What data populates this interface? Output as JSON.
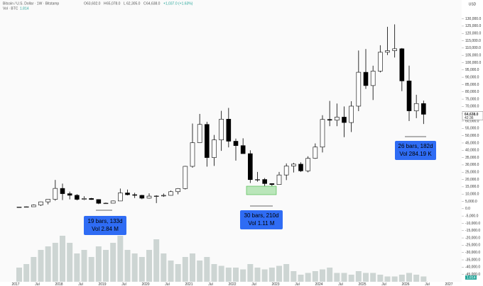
{
  "chart_data": {
    "type": "candlestick",
    "header": {
      "symbol": "Bitcoin / U.S. Dollar · 1W · Bitstamp",
      "stats": [
        {
          "key": "O",
          "value": "63,602.0"
        },
        {
          "key": "H",
          "value": "65,078.0"
        },
        {
          "key": "L",
          "value": "62,305.0"
        },
        {
          "key": "C",
          "value": "64,638.0"
        }
      ],
      "change": "+1,037.0 (+1.63%)",
      "volume_label": "Vol · BTC",
      "volume_last": "1.814"
    },
    "currency": "USD",
    "last_price_label": "64,638.0",
    "countdown": "42:36",
    "x": [
      "2017-01",
      "2017-03",
      "2017-05",
      "2017-07",
      "2017-09",
      "2017-11",
      "2018-01",
      "2018-03",
      "2018-05",
      "2018-07",
      "2018-09",
      "2018-11",
      "2019-01",
      "2019-03",
      "2019-05",
      "2019-07",
      "2019-09",
      "2019-11",
      "2020-01",
      "2020-03",
      "2020-05",
      "2020-07",
      "2020-09",
      "2020-11",
      "2021-01",
      "2021-03",
      "2021-05",
      "2021-07",
      "2021-09",
      "2021-11",
      "2022-01",
      "2022-03",
      "2022-05",
      "2022-07",
      "2022-09",
      "2022-11",
      "2023-01",
      "2023-03",
      "2023-05",
      "2023-07",
      "2023-09",
      "2023-11",
      "2024-01",
      "2024-03",
      "2024-05",
      "2024-07",
      "2024-09",
      "2024-11",
      "2025-01",
      "2025-03",
      "2025-05",
      "2025-07",
      "2025-09",
      "2025-11",
      "2026-01",
      "2026-03",
      "2026-05"
    ],
    "open": [
      1000,
      1190,
      1350,
      2500,
      4700,
      6450,
      13900,
      10300,
      9200,
      6400,
      7000,
      6300,
      3700,
      3800,
      5300,
      10800,
      9600,
      9150,
      7200,
      8600,
      8700,
      9150,
      11650,
      13800,
      29000,
      45200,
      57700,
      35000,
      47100,
      61300,
      46200,
      43200,
      37700,
      19900,
      20000,
      17200,
      16550,
      23100,
      29200,
      30500,
      25900,
      34500,
      42200,
      61100,
      60600,
      62700,
      59000,
      70200,
      93400,
      84300,
      94200,
      107100,
      108200,
      109500,
      87500,
      67000,
      72000
    ],
    "high": [
      1200,
      1550,
      2900,
      4900,
      6400,
      19700,
      17200,
      11700,
      10000,
      8500,
      7400,
      6500,
      4200,
      5600,
      13800,
      13100,
      10900,
      9500,
      10500,
      9200,
      10400,
      12400,
      14100,
      29300,
      58300,
      64900,
      59500,
      50500,
      67000,
      69000,
      48000,
      48200,
      40000,
      25200,
      21000,
      17400,
      25200,
      31000,
      31400,
      31800,
      35900,
      44700,
      64000,
      73800,
      72000,
      70000,
      73600,
      108300,
      109300,
      97900,
      111900,
      124500,
      126200,
      110000,
      97900,
      78000,
      74000
    ],
    "low": [
      900,
      890,
      1350,
      1830,
      2980,
      5500,
      5900,
      6400,
      5700,
      5900,
      6100,
      3150,
      3350,
      3700,
      5300,
      9100,
      7300,
      6500,
      6900,
      3850,
      8100,
      9000,
      9850,
      13200,
      28100,
      45100,
      28800,
      29300,
      39600,
      42000,
      32900,
      37700,
      17600,
      18500,
      15500,
      15500,
      16500,
      19600,
      24800,
      25200,
      24900,
      34100,
      38500,
      56500,
      56500,
      49000,
      52500,
      66800,
      82000,
      74400,
      93300,
      105200,
      103500,
      80500,
      60000,
      62000,
      58000
    ],
    "close": [
      1190,
      1350,
      2500,
      4700,
      6450,
      13900,
      10300,
      9200,
      6400,
      7000,
      6300,
      3700,
      3800,
      5300,
      10800,
      9600,
      9150,
      7200,
      8600,
      8700,
      9150,
      11650,
      13800,
      29000,
      45200,
      57700,
      35000,
      47100,
      61300,
      46200,
      43200,
      37700,
      19900,
      20000,
      17200,
      16550,
      23100,
      29200,
      30500,
      25900,
      34500,
      42200,
      61100,
      60600,
      62700,
      59000,
      70200,
      93400,
      84300,
      94200,
      107100,
      108200,
      109500,
      87500,
      67000,
      72000,
      64638
    ],
    "volume": [
      400000,
      500000,
      700000,
      900000,
      1000000,
      1100000,
      1300000,
      1100000,
      800000,
      900000,
      700000,
      1000000,
      900000,
      1100000,
      1300000,
      900000,
      800000,
      700000,
      900000,
      1200000,
      800000,
      600000,
      500000,
      700000,
      800000,
      600000,
      700000,
      500000,
      450000,
      400000,
      400000,
      350000,
      500000,
      400000,
      350000,
      400000,
      450000,
      500000,
      300000,
      200000,
      250000,
      300000,
      350000,
      400000,
      250000,
      250000,
      200000,
      300000,
      250000,
      250000,
      200000,
      150000,
      150000,
      200000,
      250000,
      200000,
      150000
    ],
    "volume_ylim": [
      0,
      2000000
    ],
    "xticks": [
      {
        "value": "2017-01",
        "label": "2017"
      },
      {
        "value": "2017-07",
        "label": "Jul"
      },
      {
        "value": "2018-01",
        "label": "2018"
      },
      {
        "value": "2018-07",
        "label": "Jul"
      },
      {
        "value": "2019-01",
        "label": "2019"
      },
      {
        "value": "2019-07",
        "label": "Jul"
      },
      {
        "value": "2020-01",
        "label": "2020"
      },
      {
        "value": "2020-07",
        "label": "Jul"
      },
      {
        "value": "2021-01",
        "label": "2021"
      },
      {
        "value": "2021-07",
        "label": "Jul"
      },
      {
        "value": "2022-01",
        "label": "2022"
      },
      {
        "value": "2022-07",
        "label": "Jul"
      },
      {
        "value": "2023-01",
        "label": "2023"
      },
      {
        "value": "2023-07",
        "label": "Jul"
      },
      {
        "value": "2024-01",
        "label": "2024"
      },
      {
        "value": "2024-07",
        "label": "Jul"
      },
      {
        "value": "2025-01",
        "label": "2025"
      },
      {
        "value": "2025-07",
        "label": "Jul"
      },
      {
        "value": "2026-01",
        "label": "2026"
      },
      {
        "value": "2026-07",
        "label": "Jul"
      },
      {
        "value": "2027-01",
        "label": "2027"
      }
    ],
    "ylim": [
      -50000,
      139000
    ],
    "yticks": [
      {
        "value": -45000,
        "label": "-45,000.0"
      },
      {
        "value": -40000,
        "label": "-40,000.0"
      },
      {
        "value": -35000,
        "label": "-35,000.0"
      },
      {
        "value": -30000,
        "label": "-30,000.0"
      },
      {
        "value": -25000,
        "label": "-25,000.0"
      },
      {
        "value": -20000,
        "label": "-20,000.0"
      },
      {
        "value": -15000,
        "label": "-15,000.0"
      },
      {
        "value": -10000,
        "label": "-10,000.0"
      },
      {
        "value": -5000,
        "label": "-5,000.0"
      },
      {
        "value": 0,
        "label": "0.0"
      },
      {
        "value": 5000,
        "label": "5,000.0"
      },
      {
        "value": 10000,
        "label": "10,000.0"
      },
      {
        "value": 15000,
        "label": "15,000.0"
      },
      {
        "value": 20000,
        "label": "20,000.0"
      },
      {
        "value": 25000,
        "label": "25,000.0"
      },
      {
        "value": 30000,
        "label": "30,000.0"
      },
      {
        "value": 35000,
        "label": "35,000.0"
      },
      {
        "value": 40000,
        "label": "40,000.0"
      },
      {
        "value": 45000,
        "label": "45,000.0"
      },
      {
        "value": 50000,
        "label": "50,000.0"
      },
      {
        "value": 55000,
        "label": "55,000.0"
      },
      {
        "value": 60000,
        "label": "60,000.0"
      },
      {
        "value": 65000,
        "label": "65,000.0"
      },
      {
        "value": 70000,
        "label": "70,000.0"
      },
      {
        "value": 75000,
        "label": "75,000.0"
      },
      {
        "value": 80000,
        "label": "80,000.0"
      },
      {
        "value": 85000,
        "label": "85,000.0"
      },
      {
        "value": 90000,
        "label": "90,000.0"
      },
      {
        "value": 95000,
        "label": "95,000.0"
      },
      {
        "value": 100000,
        "label": "100,000.0"
      },
      {
        "value": 105000,
        "label": "105,000.0"
      },
      {
        "value": 110000,
        "label": "110,000.0"
      },
      {
        "value": 115000,
        "label": "115,000.0"
      },
      {
        "value": 120000,
        "label": "120,000.0"
      },
      {
        "value": 125000,
        "label": "125,000.0"
      },
      {
        "value": 130000,
        "label": "130,000.0"
      }
    ],
    "grid": false,
    "up_color": "#ffffff",
    "down_color": "#000000",
    "volume_color": "#cdd5d3",
    "annotations": [
      {
        "bars": "19 bars, 133d",
        "volume": "Vol 2.84 M"
      },
      {
        "bars": "30 bars, 210d",
        "volume": "Vol 1.11 M"
      },
      {
        "bars": "26 bars, 182d",
        "volume": "Vol 284.19 K"
      }
    ]
  }
}
